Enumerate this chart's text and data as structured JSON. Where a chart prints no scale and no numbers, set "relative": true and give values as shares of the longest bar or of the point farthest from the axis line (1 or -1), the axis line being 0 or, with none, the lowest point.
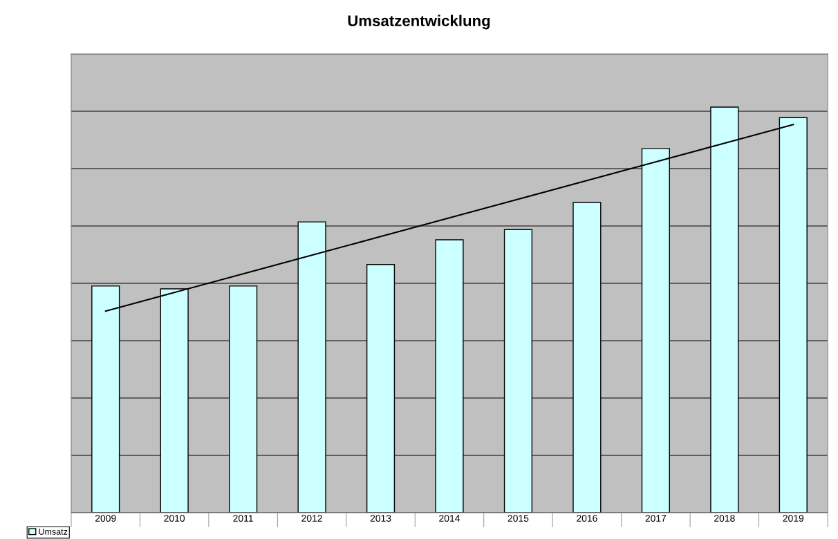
{
  "chart_data": {
    "type": "bar",
    "title": "Umsatzentwicklung",
    "relative": true,
    "categories": [
      "2009",
      "2010",
      "2011",
      "2012",
      "2013",
      "2014",
      "2015",
      "2016",
      "2017",
      "2018",
      "2019"
    ],
    "series": [
      {
        "name": "Umsatz",
        "color": "#ccffff",
        "values": [
          0.559,
          0.552,
          0.559,
          0.717,
          0.612,
          0.673,
          0.698,
          0.765,
          0.898,
          1,
          0.974
        ]
      },
      {
        "type": "line",
        "color": "#000000",
        "values": [
          0.497,
          0.543,
          0.589,
          0.635,
          0.681,
          0.727,
          0.773,
          0.819,
          0.865,
          0.911,
          0.957
        ]
      }
    ],
    "grid": "y",
    "legend": "bottom left"
  }
}
